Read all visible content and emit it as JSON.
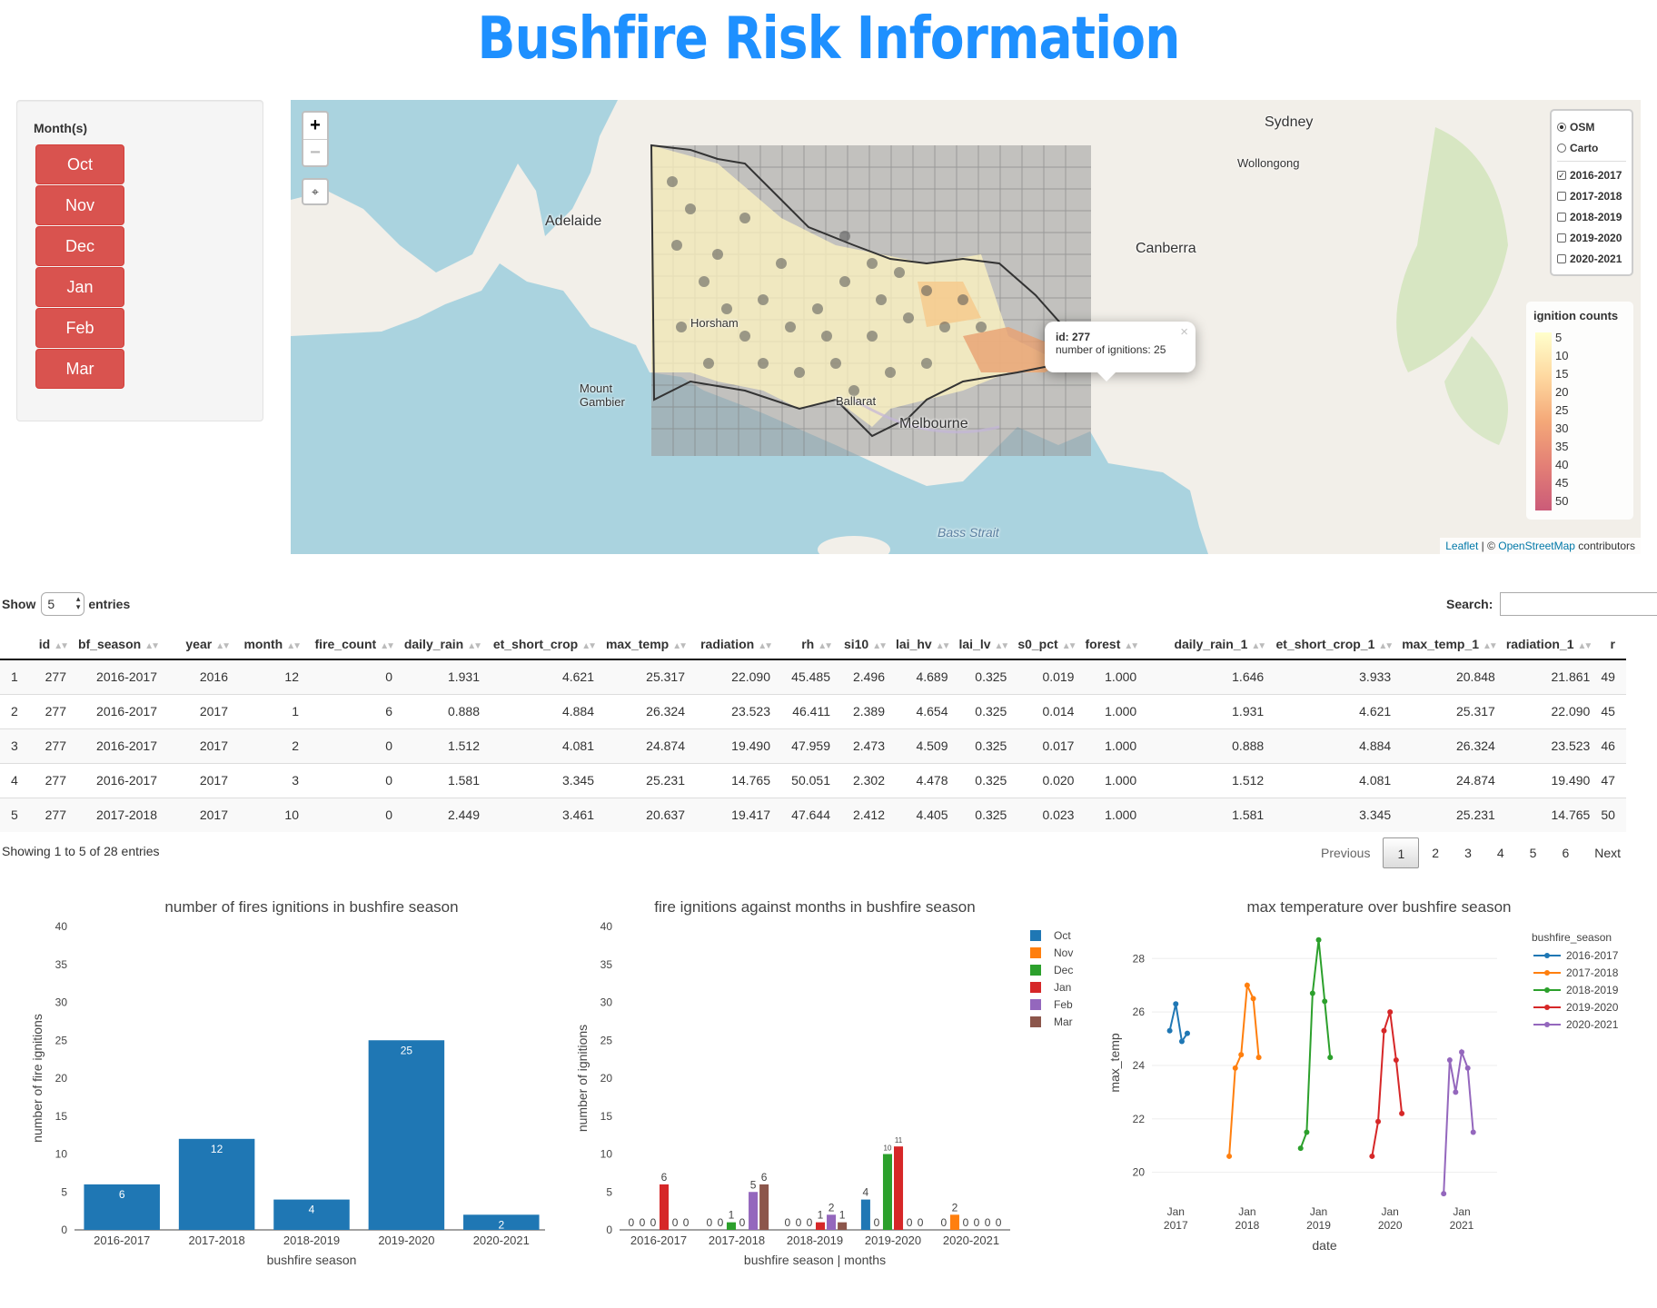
{
  "header": {
    "title": "Bushfire Risk Information",
    "title_color": "#1e90ff"
  },
  "months_panel": {
    "label": "Month(s)",
    "months": [
      "Oct",
      "Nov",
      "Dec",
      "Jan",
      "Feb",
      "Mar"
    ]
  },
  "map": {
    "zoom_in": "+",
    "zoom_out": "−",
    "fullscreen_icon": "fullscreen-icon",
    "labels": [
      "Sydney",
      "Wollongong",
      "Canberra",
      "Adelaide",
      "Horsham",
      "Mount Gambier",
      "Ballarat",
      "Melbourne",
      "Bass Strait"
    ],
    "base_layers": [
      {
        "label": "OSM",
        "selected": true
      },
      {
        "label": "Carto",
        "selected": false
      }
    ],
    "overlays": [
      {
        "label": "2016-2017",
        "checked": true
      },
      {
        "label": "2017-2018",
        "checked": false
      },
      {
        "label": "2018-2019",
        "checked": false
      },
      {
        "label": "2019-2020",
        "checked": false
      },
      {
        "label": "2020-2021",
        "checked": false
      }
    ],
    "legend": {
      "title": "ignition counts",
      "ticks": [
        "5",
        "10",
        "15",
        "20",
        "25",
        "30",
        "35",
        "40",
        "45",
        "50"
      ]
    },
    "popup": {
      "id_label": "id: 277",
      "text": "number of ignitions: 25",
      "close": "×"
    },
    "attribution": {
      "leaflet": "Leaflet",
      "sep": " | © ",
      "osm": "OpenStreetMap",
      "suffix": " contributors"
    }
  },
  "table": {
    "show_label": "Show",
    "entries_value": "5",
    "entries_label": "entries",
    "search_label": "Search:",
    "columns": [
      "",
      "id",
      "bf_season",
      "year",
      "month",
      "fire_count",
      "daily_rain",
      "et_short_crop",
      "max_temp",
      "radiation",
      "rh",
      "si10",
      "lai_hv",
      "lai_lv",
      "s0_pct",
      "forest",
      "daily_rain_1",
      "et_short_crop_1",
      "max_temp_1",
      "radiation_1",
      "r"
    ],
    "rows": [
      [
        "1",
        "277",
        "2016-2017",
        "2016",
        "12",
        "0",
        "1.931",
        "4.621",
        "25.317",
        "22.090",
        "45.485",
        "2.496",
        "4.689",
        "0.325",
        "0.019",
        "1.000",
        "1.646",
        "3.933",
        "20.848",
        "21.861",
        "49"
      ],
      [
        "2",
        "277",
        "2016-2017",
        "2017",
        "1",
        "6",
        "0.888",
        "4.884",
        "26.324",
        "23.523",
        "46.411",
        "2.389",
        "4.654",
        "0.325",
        "0.014",
        "1.000",
        "1.931",
        "4.621",
        "25.317",
        "22.090",
        "45"
      ],
      [
        "3",
        "277",
        "2016-2017",
        "2017",
        "2",
        "0",
        "1.512",
        "4.081",
        "24.874",
        "19.490",
        "47.959",
        "2.473",
        "4.509",
        "0.325",
        "0.017",
        "1.000",
        "0.888",
        "4.884",
        "26.324",
        "23.523",
        "46"
      ],
      [
        "4",
        "277",
        "2016-2017",
        "2017",
        "3",
        "0",
        "1.581",
        "3.345",
        "25.231",
        "14.765",
        "50.051",
        "2.302",
        "4.478",
        "0.325",
        "0.020",
        "1.000",
        "1.512",
        "4.081",
        "24.874",
        "19.490",
        "47"
      ],
      [
        "5",
        "277",
        "2017-2018",
        "2017",
        "10",
        "0",
        "2.449",
        "3.461",
        "20.637",
        "19.417",
        "47.644",
        "2.412",
        "4.405",
        "0.325",
        "0.023",
        "1.000",
        "1.581",
        "3.345",
        "25.231",
        "14.765",
        "50"
      ]
    ],
    "info": "Showing 1 to 5 of 28 entries",
    "pager": {
      "previous": "Previous",
      "pages": [
        "1",
        "2",
        "3",
        "4",
        "5",
        "6"
      ],
      "current": "1",
      "next": "Next"
    }
  },
  "chart_data": [
    {
      "type": "bar",
      "title": "number of fires ignitions in bushfire season",
      "xlabel": "bushfire season",
      "ylabel": "number of fire ignitions",
      "categories": [
        "2016-2017",
        "2017-2018",
        "2018-2019",
        "2019-2020",
        "2020-2021"
      ],
      "values": [
        6,
        12,
        4,
        25,
        2
      ],
      "ylim": [
        0,
        40
      ],
      "yticks": [
        0,
        5,
        10,
        15,
        20,
        25,
        30,
        35,
        40
      ],
      "color": "#1f77b4"
    },
    {
      "type": "bar",
      "title": "fire ignitions against months in bushfire season",
      "xlabel": "bushfire season | months",
      "ylabel": "number of ignitions",
      "categories": [
        "2016-2017",
        "2017-2018",
        "2018-2019",
        "2019-2020",
        "2020-2021"
      ],
      "ylim": [
        0,
        40
      ],
      "yticks": [
        0,
        5,
        10,
        15,
        20,
        25,
        30,
        35,
        40
      ],
      "legend_position": "right",
      "series": [
        {
          "name": "Oct",
          "color": "#1f77b4",
          "values": [
            0,
            0,
            0,
            4,
            0
          ]
        },
        {
          "name": "Nov",
          "color": "#ff7f0e",
          "values": [
            0,
            0,
            0,
            0,
            2
          ]
        },
        {
          "name": "Dec",
          "color": "#2ca02c",
          "values": [
            0,
            1,
            0,
            10,
            0
          ]
        },
        {
          "name": "Jan",
          "color": "#d62728",
          "values": [
            6,
            0,
            1,
            11,
            0
          ]
        },
        {
          "name": "Feb",
          "color": "#9467bd",
          "values": [
            0,
            5,
            2,
            0,
            0
          ]
        },
        {
          "name": "Mar",
          "color": "#8c564b",
          "values": [
            0,
            6,
            1,
            0,
            0
          ]
        }
      ]
    },
    {
      "type": "line",
      "title": "max temperature over bushfire season",
      "xlabel": "date",
      "ylabel": "max_temp",
      "legend_title": "bushfire_season",
      "legend_position": "right",
      "ylim": [
        19,
        29.2
      ],
      "yticks": [
        20,
        22,
        24,
        26,
        28
      ],
      "xticks": [
        {
          "date": "2017-01-01",
          "label": [
            "Jan",
            "2017"
          ]
        },
        {
          "date": "2018-01-01",
          "label": [
            "Jan",
            "2018"
          ]
        },
        {
          "date": "2019-01-01",
          "label": [
            "Jan",
            "2019"
          ]
        },
        {
          "date": "2020-01-01",
          "label": [
            "Jan",
            "2020"
          ]
        },
        {
          "date": "2021-01-01",
          "label": [
            "Jan",
            "2021"
          ]
        }
      ],
      "xlim": [
        "2016-09-01",
        "2021-07-01"
      ],
      "series": [
        {
          "name": "2016-2017",
          "color": "#1f77b4",
          "x": [
            "2016-12-01",
            "2017-01-01",
            "2017-02-01",
            "2017-03-01"
          ],
          "y": [
            25.3,
            26.3,
            24.9,
            25.2
          ]
        },
        {
          "name": "2017-2018",
          "color": "#ff7f0e",
          "x": [
            "2017-10-01",
            "2017-11-01",
            "2017-12-01",
            "2018-01-01",
            "2018-02-01",
            "2018-03-01"
          ],
          "y": [
            20.6,
            23.9,
            24.4,
            27.0,
            26.5,
            24.3
          ]
        },
        {
          "name": "2018-2019",
          "color": "#2ca02c",
          "x": [
            "2018-10-01",
            "2018-11-01",
            "2018-12-01",
            "2019-01-01",
            "2019-02-01",
            "2019-03-01"
          ],
          "y": [
            20.9,
            21.5,
            26.7,
            28.7,
            26.4,
            24.3
          ]
        },
        {
          "name": "2019-2020",
          "color": "#d62728",
          "x": [
            "2019-10-01",
            "2019-11-01",
            "2019-12-01",
            "2020-01-01",
            "2020-02-01",
            "2020-03-01"
          ],
          "y": [
            20.6,
            21.9,
            25.3,
            26.0,
            24.2,
            22.2
          ]
        },
        {
          "name": "2020-2021",
          "color": "#9467bd",
          "x": [
            "2020-10-01",
            "2020-11-01",
            "2020-12-01",
            "2021-01-01",
            "2021-02-01",
            "2021-03-01"
          ],
          "y": [
            19.2,
            24.2,
            23.0,
            24.5,
            23.9,
            21.5
          ]
        }
      ]
    }
  ]
}
